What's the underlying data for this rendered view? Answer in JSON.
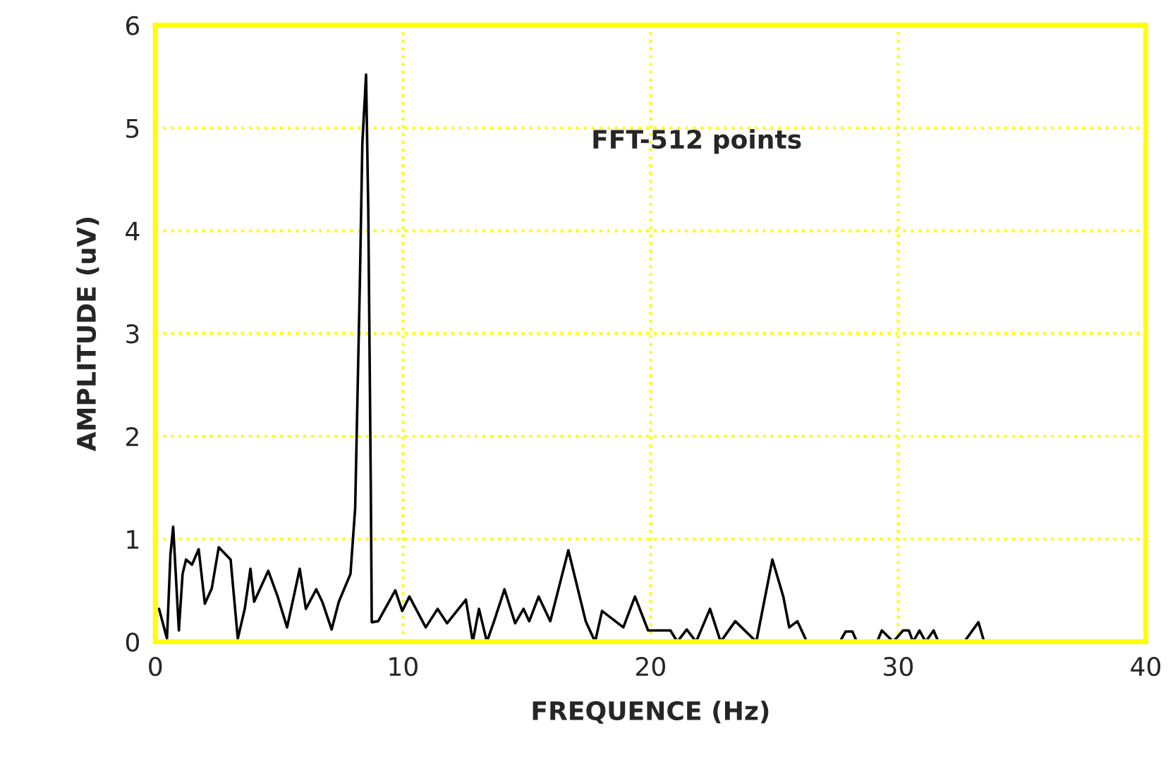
{
  "chart_data": {
    "type": "line",
    "xlabel": "FREQUENCE (Hz)",
    "ylabel": "AMPLITUDE (uV)",
    "annotations": [
      "FFT-512 points"
    ],
    "series": [
      {
        "color": "#000000",
        "x": [
          0.15,
          0.47,
          0.61,
          0.72,
          0.95,
          1.1,
          1.24,
          1.48,
          1.75,
          2.0,
          2.28,
          2.56,
          3.04,
          3.33,
          3.61,
          3.84,
          3.99,
          4.56,
          4.94,
          5.32,
          5.83,
          6.08,
          6.5,
          6.74,
          7.12,
          7.41,
          7.88,
          8.07,
          8.26,
          8.36,
          8.51,
          8.6,
          8.7,
          8.74,
          9.0,
          9.69,
          9.97,
          10.26,
          10.92,
          11.4,
          11.78,
          12.54,
          12.82,
          13.07,
          13.39,
          13.68,
          14.1,
          14.53,
          14.87,
          15.1,
          15.48,
          15.95,
          16.68,
          17.38,
          17.76,
          18.04,
          18.9,
          19.37,
          19.9,
          20.8,
          21.08,
          21.46,
          21.84,
          22.4,
          22.83,
          23.42,
          24.27,
          24.92,
          25.36,
          25.6,
          25.93,
          26.31,
          27.64,
          27.88,
          28.15,
          28.33,
          29.15,
          29.34,
          29.8,
          30.2,
          30.43,
          30.6,
          30.86,
          31.11,
          31.43,
          31.62,
          32.67,
          33.24,
          33.47,
          40
        ],
        "values": [
          0.32,
          0.03,
          0.85,
          1.12,
          0.11,
          0.66,
          0.8,
          0.75,
          0.9,
          0.37,
          0.52,
          0.92,
          0.8,
          0.03,
          0.32,
          0.71,
          0.39,
          0.69,
          0.44,
          0.14,
          0.71,
          0.32,
          0.51,
          0.39,
          0.12,
          0.39,
          0.66,
          1.3,
          3.5,
          4.85,
          5.52,
          4.19,
          1.54,
          0.19,
          0.2,
          0.5,
          0.3,
          0.44,
          0.14,
          0.32,
          0.18,
          0.41,
          0,
          0.32,
          0,
          0.2,
          0.51,
          0.18,
          0.32,
          0.2,
          0.44,
          0.2,
          0.89,
          0.2,
          0,
          0.3,
          0.14,
          0.44,
          0.11,
          0.11,
          0,
          0.12,
          0,
          0.32,
          0,
          0.2,
          0,
          0.8,
          0.44,
          0.14,
          0.2,
          0,
          0,
          0.1,
          0.1,
          0,
          0,
          0.11,
          0,
          0.11,
          0.11,
          0,
          0.11,
          0,
          0.11,
          0,
          0,
          0.19,
          0,
          0
        ]
      }
    ],
    "xlim": [
      0,
      40
    ],
    "xticks": [
      0,
      10,
      20,
      30,
      40
    ],
    "ylim": [
      0,
      6
    ],
    "yticks": [
      0,
      1,
      2,
      3,
      4,
      5,
      6
    ],
    "grid": true,
    "line_style": "solid",
    "marker": "none"
  }
}
